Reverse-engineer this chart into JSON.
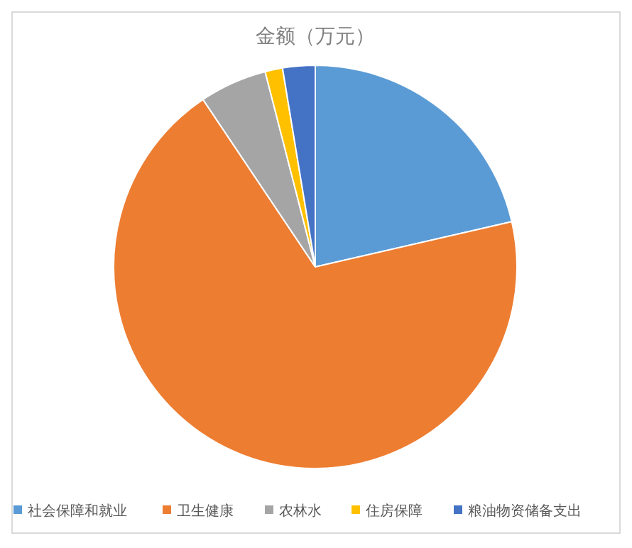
{
  "chart_data": {
    "type": "pie",
    "title": "金额（万元）",
    "categories": [
      "社会保障和就业",
      "卫生健康",
      "农林水",
      "住房保障",
      "粮油物资储备支出"
    ],
    "values": [
      21.4,
      69.2,
      5.4,
      1.4,
      2.6
    ],
    "colors": [
      "#5b9bd5",
      "#ed7d31",
      "#a5a5a5",
      "#ffc000",
      "#4472c4"
    ],
    "legend": "bottom"
  }
}
